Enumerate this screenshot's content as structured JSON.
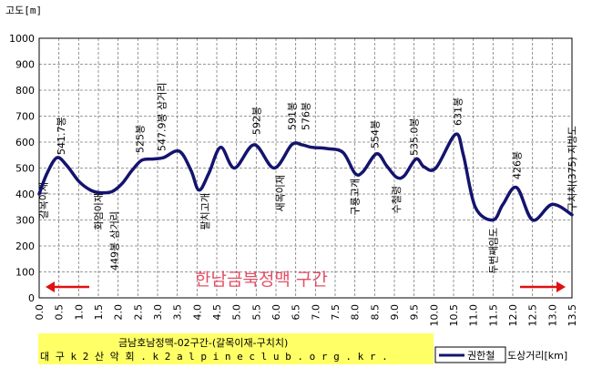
{
  "chart_data": {
    "type": "line",
    "ylabel": "고도[m]",
    "xlabel": "도상거리[km]",
    "ylim": [
      0,
      1000
    ],
    "xlim": [
      0,
      13.5
    ],
    "yticks": [
      "0",
      "100",
      "200",
      "300",
      "400",
      "500",
      "600",
      "700",
      "800",
      "900",
      "1000"
    ],
    "xticks": [
      "0.0",
      "0.5",
      "1.0",
      "1.5",
      "2.0",
      "2.5",
      "3.0",
      "3.5",
      "4.0",
      "4.5",
      "5.0",
      "5.5",
      "6.0",
      "6.5",
      "7.0",
      "7.5",
      "8.0",
      "8.5",
      "9.0",
      "9.5",
      "10.0",
      "10.5",
      "11.0",
      "11.5",
      "12.0",
      "12.5",
      "13.0",
      "13.5"
    ],
    "grid": true,
    "series": [
      {
        "name": "권한철",
        "x": [
          0.0,
          0.2,
          0.45,
          0.7,
          1.0,
          1.3,
          1.55,
          1.85,
          2.1,
          2.35,
          2.6,
          2.9,
          3.15,
          3.55,
          3.85,
          4.05,
          4.3,
          4.6,
          4.95,
          5.45,
          5.95,
          6.4,
          6.65,
          6.9,
          7.3,
          7.7,
          8.0,
          8.2,
          8.55,
          8.8,
          9.05,
          9.25,
          9.55,
          9.75,
          10.05,
          10.55,
          10.75,
          11.05,
          11.5,
          11.75,
          12.1,
          12.5,
          13.0,
          13.5
        ],
        "y": [
          400,
          480,
          540,
          510,
          450,
          415,
          405,
          410,
          440,
          490,
          530,
          535,
          540,
          565,
          490,
          415,
          480,
          580,
          500,
          590,
          500,
          590,
          590,
          580,
          575,
          560,
          480,
          485,
          555,
          510,
          465,
          470,
          535,
          505,
          500,
          630,
          550,
          350,
          300,
          360,
          425,
          300,
          360,
          320
        ]
      }
    ],
    "annotations": [
      {
        "text": "갈목이재",
        "x": 0.1
      },
      {
        "text": "541.7봉",
        "x": 0.55
      },
      {
        "text": "화엄이재",
        "x": 1.5
      },
      {
        "text": "449봉 삼거리",
        "x": 1.9
      },
      {
        "text": "525봉",
        "x": 2.55
      },
      {
        "text": "547.9봉 삼거리",
        "x": 3.1
      },
      {
        "text": "팔치고개",
        "x": 4.2
      },
      {
        "text": "592봉",
        "x": 5.5
      },
      {
        "text": "새목이재",
        "x": 6.1
      },
      {
        "text": "591봉",
        "x": 6.4
      },
      {
        "text": "576봉",
        "x": 6.75
      },
      {
        "text": "구룡고개",
        "x": 8.0
      },
      {
        "text": "554봉",
        "x": 8.5
      },
      {
        "text": "수철령",
        "x": 9.05
      },
      {
        "text": "535.0봉",
        "x": 9.5
      },
      {
        "text": "631봉",
        "x": 10.6
      },
      {
        "text": "두번째임도",
        "x": 11.5
      },
      {
        "text": "426봉",
        "x": 12.1
      },
      {
        "text": "구치치(375) 지방도",
        "x": 13.5
      }
    ],
    "overlay_text": "한남금북정맥 구간",
    "info": {
      "line1": "금남호남정맥-02구간-(갈목이재-구치치)",
      "line2": "대 구 k 2 산 악 회 .  k 2 a l p i n e c l u b . o r g . k r ."
    },
    "colors": {
      "line": "#14146e",
      "grid": "#7a7a7a",
      "arrow": "#e01010",
      "overlay": "#e0304a",
      "info_bg": "#ffff66"
    }
  }
}
